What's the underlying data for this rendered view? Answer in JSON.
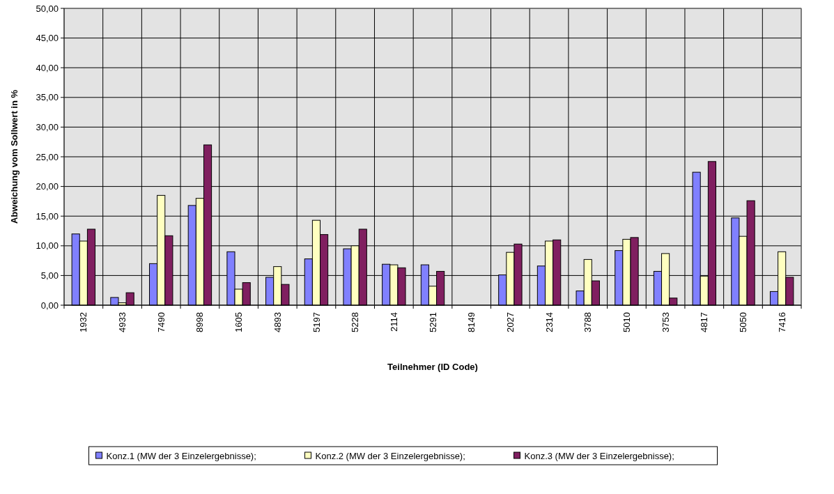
{
  "chart_data": {
    "type": "bar",
    "xlabel": "Teilnehmer (ID Code)",
    "ylabel": "Abweichung vom Sollwert in %",
    "categories": [
      "1932",
      "4933",
      "7490",
      "8998",
      "1605",
      "4893",
      "5197",
      "5228",
      "2114",
      "5291",
      "8149",
      "2027",
      "2314",
      "3788",
      "5010",
      "3753",
      "4817",
      "5050",
      "7416"
    ],
    "series": [
      {
        "name": "Konz.1 (MW der 3 Einzelergebnisse);",
        "color": "#8080ff",
        "values": [
          12.0,
          1.3,
          7.0,
          16.8,
          9.0,
          4.7,
          7.8,
          9.5,
          6.9,
          6.8,
          null,
          5.1,
          6.6,
          2.4,
          9.2,
          5.7,
          22.4,
          14.7,
          2.3
        ]
      },
      {
        "name": "Konz.2 (MW der 3 Einzelergebnisse);",
        "color": "#ffffc0",
        "values": [
          10.8,
          0.4,
          18.5,
          18.0,
          2.7,
          6.5,
          14.3,
          10.0,
          6.8,
          3.2,
          null,
          8.9,
          10.8,
          7.7,
          11.1,
          8.7,
          4.9,
          11.6,
          9.0
        ]
      },
      {
        "name": "Konz.3 (MW der 3 Einzelergebnisse);",
        "color": "#801f60",
        "values": [
          12.8,
          2.1,
          11.7,
          27.0,
          3.8,
          3.5,
          11.9,
          12.8,
          6.3,
          5.7,
          null,
          10.3,
          11.0,
          4.1,
          11.4,
          1.2,
          24.2,
          17.6,
          4.7
        ]
      }
    ],
    "ylim": [
      0,
      50
    ],
    "yticks": [
      {
        "value": 0,
        "label": "0,00"
      },
      {
        "value": 5,
        "label": "5,00"
      },
      {
        "value": 10,
        "label": "10,00"
      },
      {
        "value": 15,
        "label": "15,00"
      },
      {
        "value": 20,
        "label": "20,00"
      },
      {
        "value": 25,
        "label": "25,00"
      },
      {
        "value": 30,
        "label": "30,00"
      },
      {
        "value": 35,
        "label": "35,00"
      },
      {
        "value": 40,
        "label": "40,00"
      },
      {
        "value": 45,
        "label": "45,00"
      },
      {
        "value": 50,
        "label": "50,00"
      }
    ],
    "grid": true,
    "legend": "bottom"
  }
}
